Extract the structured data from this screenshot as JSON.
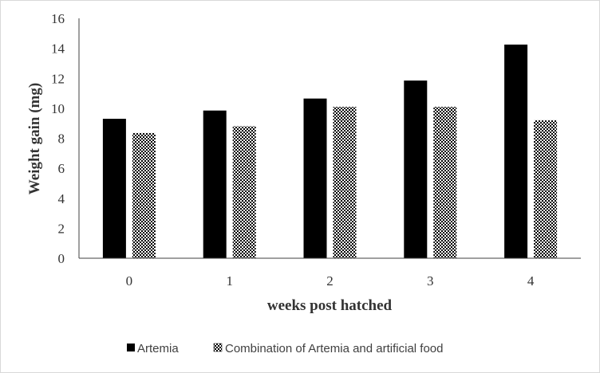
{
  "chart_data": {
    "type": "bar",
    "title": "",
    "xlabel": "weeks post hatched",
    "ylabel": "Weight gain (mg)",
    "categories": [
      "0",
      "1",
      "2",
      "3",
      "4"
    ],
    "ylim": [
      0,
      16
    ],
    "yticks": [
      "0",
      "2",
      "4",
      "6",
      "8",
      "10",
      "12",
      "14",
      "16"
    ],
    "grid": false,
    "legend_position": "bottom",
    "series": [
      {
        "name": "Artemia",
        "values": [
          9.3,
          9.85,
          10.65,
          11.85,
          14.25
        ],
        "fill": "solid",
        "color": "#000000"
      },
      {
        "name": "Combination of Artemia and artificial food",
        "values": [
          8.35,
          8.8,
          10.1,
          10.1,
          9.2
        ],
        "fill": "checkered-pattern",
        "color": "#000000"
      }
    ]
  }
}
